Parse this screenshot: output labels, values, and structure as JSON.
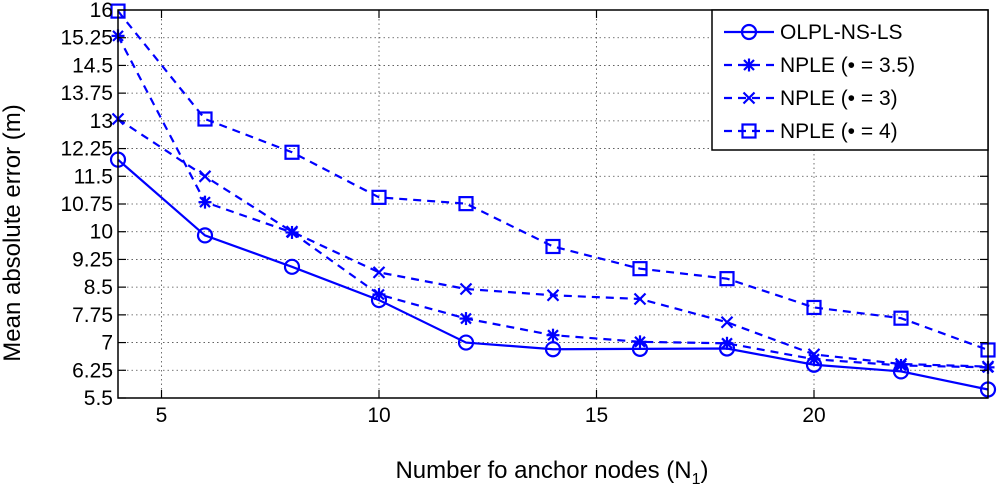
{
  "chart_data": {
    "type": "line",
    "title": "",
    "xlabel": "Number fo anchor nodes (N",
    "xlabel_subscript": "1",
    "xlabel_suffix": ")",
    "ylabel": "Mean absolute error (m)",
    "xlim": [
      4,
      24
    ],
    "ylim": [
      5.5,
      16
    ],
    "xticks": [
      5,
      10,
      15,
      20
    ],
    "yticks": [
      5.5,
      6.25,
      7,
      7.75,
      8.5,
      9.25,
      10,
      10.75,
      11.5,
      12.25,
      13,
      13.75,
      14.5,
      15.25,
      16
    ],
    "ytick_labels": [
      "5.5",
      "6.25",
      "7",
      "7.75",
      "8.5",
      "9.25",
      "10",
      "10.75",
      "11.5",
      "12.25",
      "13",
      "13.75",
      "14.5",
      "15.25",
      "16"
    ],
    "xtick_labels": [
      "5",
      "10",
      "15",
      "20"
    ],
    "grid": true,
    "legend_position": "top-right",
    "color": "#0000ff",
    "x": [
      4,
      6,
      8,
      10,
      12,
      14,
      16,
      18,
      20,
      22,
      24
    ],
    "series": [
      {
        "name": "OLPL-NS-LS",
        "marker": "circle",
        "line": "solid",
        "values": [
          11.95,
          9.9,
          9.05,
          8.15,
          7.0,
          6.82,
          6.83,
          6.84,
          6.4,
          6.22,
          5.73
        ]
      },
      {
        "name": "NPLE (•  = 3.5)",
        "marker": "star",
        "line": "dashed",
        "values": [
          15.3,
          10.8,
          9.98,
          8.3,
          7.65,
          7.2,
          7.02,
          6.98,
          6.55,
          6.38,
          6.33
        ]
      },
      {
        "name": "NPLE (•  = 3)",
        "marker": "x",
        "line": "dashed",
        "values": [
          13.05,
          11.5,
          10.0,
          8.9,
          8.45,
          8.28,
          8.18,
          7.55,
          6.68,
          6.42,
          6.35
        ]
      },
      {
        "name": "NPLE (•  = 4)",
        "marker": "square",
        "line": "dashed",
        "values": [
          15.97,
          13.05,
          12.15,
          10.93,
          10.76,
          9.6,
          9.0,
          8.73,
          7.95,
          7.66,
          6.8
        ]
      }
    ]
  }
}
